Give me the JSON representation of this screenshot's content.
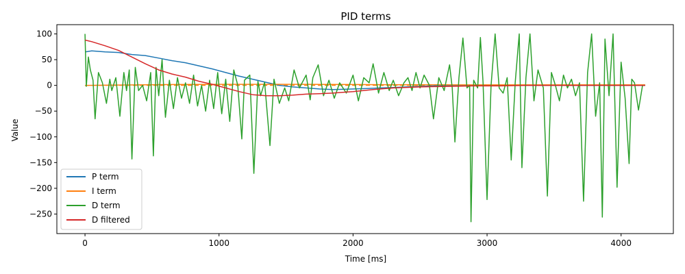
{
  "chart_data": {
    "type": "line",
    "title": "PID terms",
    "xlabel": "Time [ms]",
    "ylabel": "Value",
    "xlim": [
      -210,
      4390
    ],
    "ylim": [
      -288,
      118
    ],
    "xticks": [
      0,
      1000,
      2000,
      3000,
      4000
    ],
    "yticks": [
      100,
      50,
      0,
      -50,
      -100,
      -150,
      -200,
      -250
    ],
    "xtick_labels": [
      "0",
      "1000",
      "2000",
      "3000",
      "4000"
    ],
    "ytick_labels": [
      "100",
      "50",
      "0",
      "−50",
      "−100",
      "−150",
      "−200",
      "−250"
    ],
    "grid": false,
    "legend_position": "lower-left",
    "series": [
      {
        "name": "P term",
        "color": "#1f77b4",
        "x": [
          0,
          50,
          150,
          250,
          350,
          450,
          550,
          650,
          750,
          850,
          950,
          1050,
          1150,
          1250,
          1350,
          1450,
          1550,
          1650,
          1750,
          1850,
          2000,
          2100,
          2200,
          2300,
          2400,
          2500,
          2600,
          2700,
          2800,
          3000,
          3200,
          3400,
          3600,
          3800,
          4000,
          4180
        ],
        "y": [
          65,
          67,
          65,
          64,
          60,
          58,
          53,
          48,
          44,
          38,
          32,
          25,
          18,
          12,
          6,
          0,
          -3,
          -5,
          -7,
          -8,
          -7,
          -6,
          -5,
          -4,
          -3,
          -2,
          -1,
          0,
          0,
          0,
          0,
          0,
          0,
          0,
          0,
          0
        ]
      },
      {
        "name": "I term",
        "color": "#ff7f0e",
        "x": [
          0,
          200,
          400,
          600,
          800,
          1000,
          1200,
          1400,
          1600,
          1800,
          2000,
          2200,
          2400,
          2600,
          2800,
          3000,
          3200,
          3400,
          3600,
          3800,
          4000,
          4180
        ],
        "y": [
          0,
          0.5,
          1,
          1.5,
          1.8,
          2,
          2,
          2,
          2,
          1.8,
          1.6,
          1.4,
          1.2,
          1.1,
          1,
          1,
          1,
          1,
          1,
          1,
          1,
          1
        ]
      },
      {
        "name": "D term",
        "color": "#2ca02c",
        "x": [
          0,
          10,
          25,
          40,
          60,
          75,
          100,
          130,
          160,
          185,
          200,
          230,
          260,
          290,
          310,
          330,
          350,
          375,
          400,
          430,
          460,
          490,
          510,
          530,
          550,
          575,
          600,
          630,
          660,
          690,
          720,
          750,
          780,
          810,
          840,
          870,
          900,
          930,
          960,
          990,
          1020,
          1050,
          1080,
          1110,
          1140,
          1170,
          1190,
          1230,
          1260,
          1290,
          1310,
          1340,
          1380,
          1410,
          1450,
          1490,
          1520,
          1560,
          1600,
          1650,
          1680,
          1700,
          1740,
          1780,
          1820,
          1860,
          1900,
          1950,
          2000,
          2040,
          2080,
          2120,
          2150,
          2190,
          2230,
          2270,
          2300,
          2340,
          2380,
          2410,
          2440,
          2470,
          2500,
          2530,
          2570,
          2600,
          2640,
          2680,
          2720,
          2740,
          2760,
          2790,
          2820,
          2850,
          2870,
          2880,
          2900,
          2930,
          2950,
          2970,
          3000,
          3030,
          3060,
          3090,
          3120,
          3150,
          3180,
          3210,
          3240,
          3260,
          3290,
          3320,
          3350,
          3380,
          3420,
          3450,
          3480,
          3510,
          3540,
          3570,
          3600,
          3630,
          3660,
          3690,
          3720,
          3750,
          3780,
          3810,
          3840,
          3860,
          3880,
          3910,
          3940,
          3970,
          4000,
          4030,
          4060,
          4080,
          4100,
          4130,
          4160,
          4180
        ],
        "y": [
          100,
          -2,
          55,
          30,
          10,
          -65,
          25,
          5,
          -35,
          12,
          -10,
          15,
          -60,
          25,
          -10,
          30,
          -143,
          35,
          -10,
          0,
          -30,
          25,
          -137,
          35,
          -20,
          50,
          -62,
          10,
          -45,
          15,
          -25,
          5,
          -35,
          20,
          -40,
          0,
          -50,
          10,
          -45,
          25,
          -55,
          12,
          -70,
          30,
          0,
          -104,
          10,
          20,
          -171,
          8,
          -20,
          6,
          -117,
          12,
          -35,
          -5,
          -30,
          30,
          -5,
          20,
          -28,
          15,
          40,
          -20,
          10,
          -25,
          5,
          -15,
          20,
          -30,
          15,
          5,
          42,
          -15,
          25,
          -10,
          10,
          -20,
          5,
          15,
          -10,
          25,
          -5,
          20,
          0,
          -65,
          15,
          -10,
          40,
          -5,
          -110,
          15,
          92,
          -5,
          0,
          -265,
          10,
          -5,
          93,
          5,
          -222,
          0,
          100,
          -5,
          -15,
          15,
          -145,
          5,
          100,
          -160,
          15,
          100,
          -30,
          30,
          -5,
          -215,
          25,
          0,
          -30,
          20,
          -5,
          12,
          -20,
          5,
          -225,
          25,
          100,
          -60,
          5,
          -256,
          90,
          -20,
          100,
          -198,
          45,
          -25,
          -152,
          12,
          5,
          -48,
          0,
          0
        ]
      },
      {
        "name": "D filtered",
        "color": "#d62728",
        "x": [
          0,
          50,
          150,
          250,
          350,
          450,
          550,
          650,
          750,
          850,
          950,
          1050,
          1150,
          1250,
          1350,
          1450,
          1550,
          1650,
          1750,
          1850,
          2000,
          2150,
          2300,
          2500,
          2700,
          2900,
          3100,
          3300,
          3500,
          3700,
          3900,
          4100,
          4180
        ],
        "y": [
          88,
          85,
          77,
          68,
          55,
          42,
          30,
          22,
          16,
          8,
          2,
          -5,
          -12,
          -18,
          -20,
          -20,
          -19,
          -17,
          -16,
          -15,
          -12,
          -8,
          -5,
          -3,
          -2,
          -1,
          -1,
          0,
          0,
          0,
          0,
          0,
          0
        ]
      }
    ]
  }
}
